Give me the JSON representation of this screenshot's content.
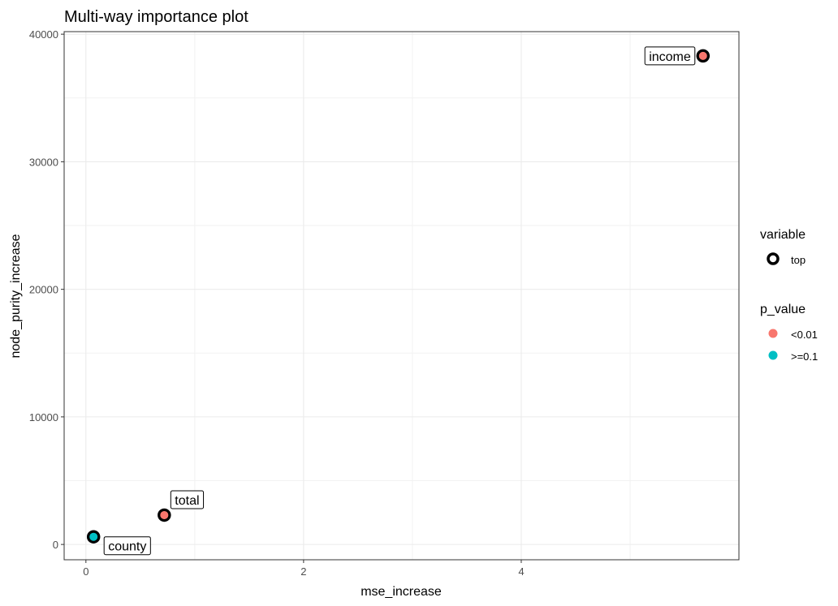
{
  "chart_data": {
    "type": "scatter",
    "title": "Multi-way importance plot",
    "xlabel": "mse_increase",
    "ylabel": "node_purity_increase",
    "xlim": [
      -0.2,
      6.0
    ],
    "ylim": [
      -1200,
      40200
    ],
    "x_ticks": [
      0,
      2,
      4
    ],
    "x_tick_labels": [
      "0",
      "2",
      "4"
    ],
    "y_ticks": [
      0,
      10000,
      20000,
      30000,
      40000
    ],
    "y_tick_labels": [
      "0",
      "10000",
      "20000",
      "30000",
      "40000"
    ],
    "grid": true,
    "points": [
      {
        "label": "income",
        "x": 5.67,
        "y": 38300,
        "p_value": "<0.01",
        "variable": "top"
      },
      {
        "label": "total",
        "x": 0.72,
        "y": 2300,
        "p_value": "<0.01",
        "variable": "top"
      },
      {
        "label": "county",
        "x": 0.07,
        "y": 600,
        "p_value": ">=0.1",
        "variable": "top"
      }
    ],
    "legend": {
      "placement": "right",
      "variable": {
        "title": "variable",
        "items": [
          {
            "label": "top"
          }
        ]
      },
      "p_value": {
        "title": "p_value",
        "items": [
          {
            "label": "<0.01",
            "color": "#f8766d"
          },
          {
            "label": ">=0.1",
            "color": "#00bfc4"
          }
        ]
      }
    }
  }
}
